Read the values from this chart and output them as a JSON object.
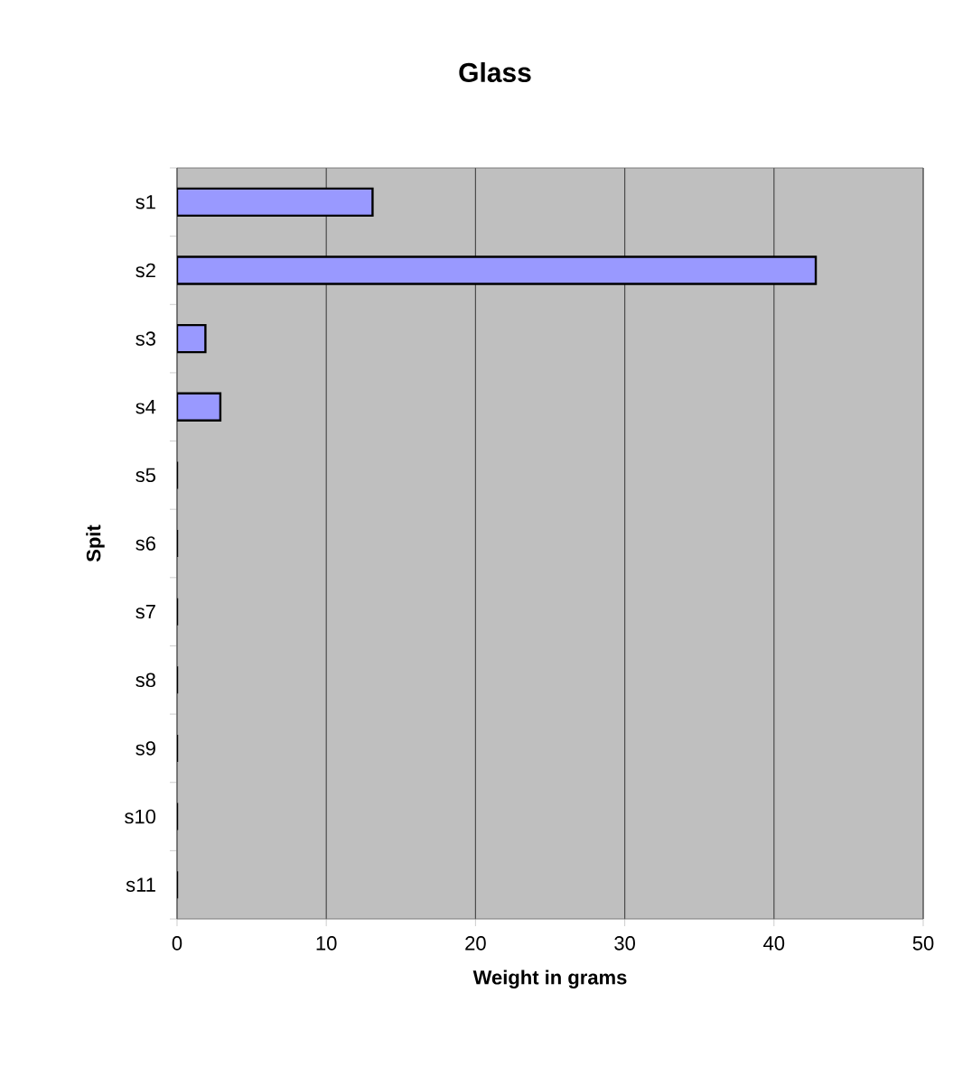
{
  "chart_data": {
    "type": "bar",
    "orientation": "horizontal",
    "title": "Glass",
    "xlabel": "Weight in grams",
    "ylabel": "Spit",
    "categories": [
      "s1",
      "s2",
      "s3",
      "s4",
      "s5",
      "s6",
      "s7",
      "s8",
      "s9",
      "s10",
      "s11"
    ],
    "values": [
      13.1,
      42.8,
      1.9,
      2.9,
      0,
      0,
      0,
      0,
      0,
      0,
      0
    ],
    "color": "#9999ff",
    "xlim": [
      0,
      50
    ],
    "xticks": [
      0,
      10,
      20,
      30,
      40,
      50
    ],
    "grid": "x"
  }
}
